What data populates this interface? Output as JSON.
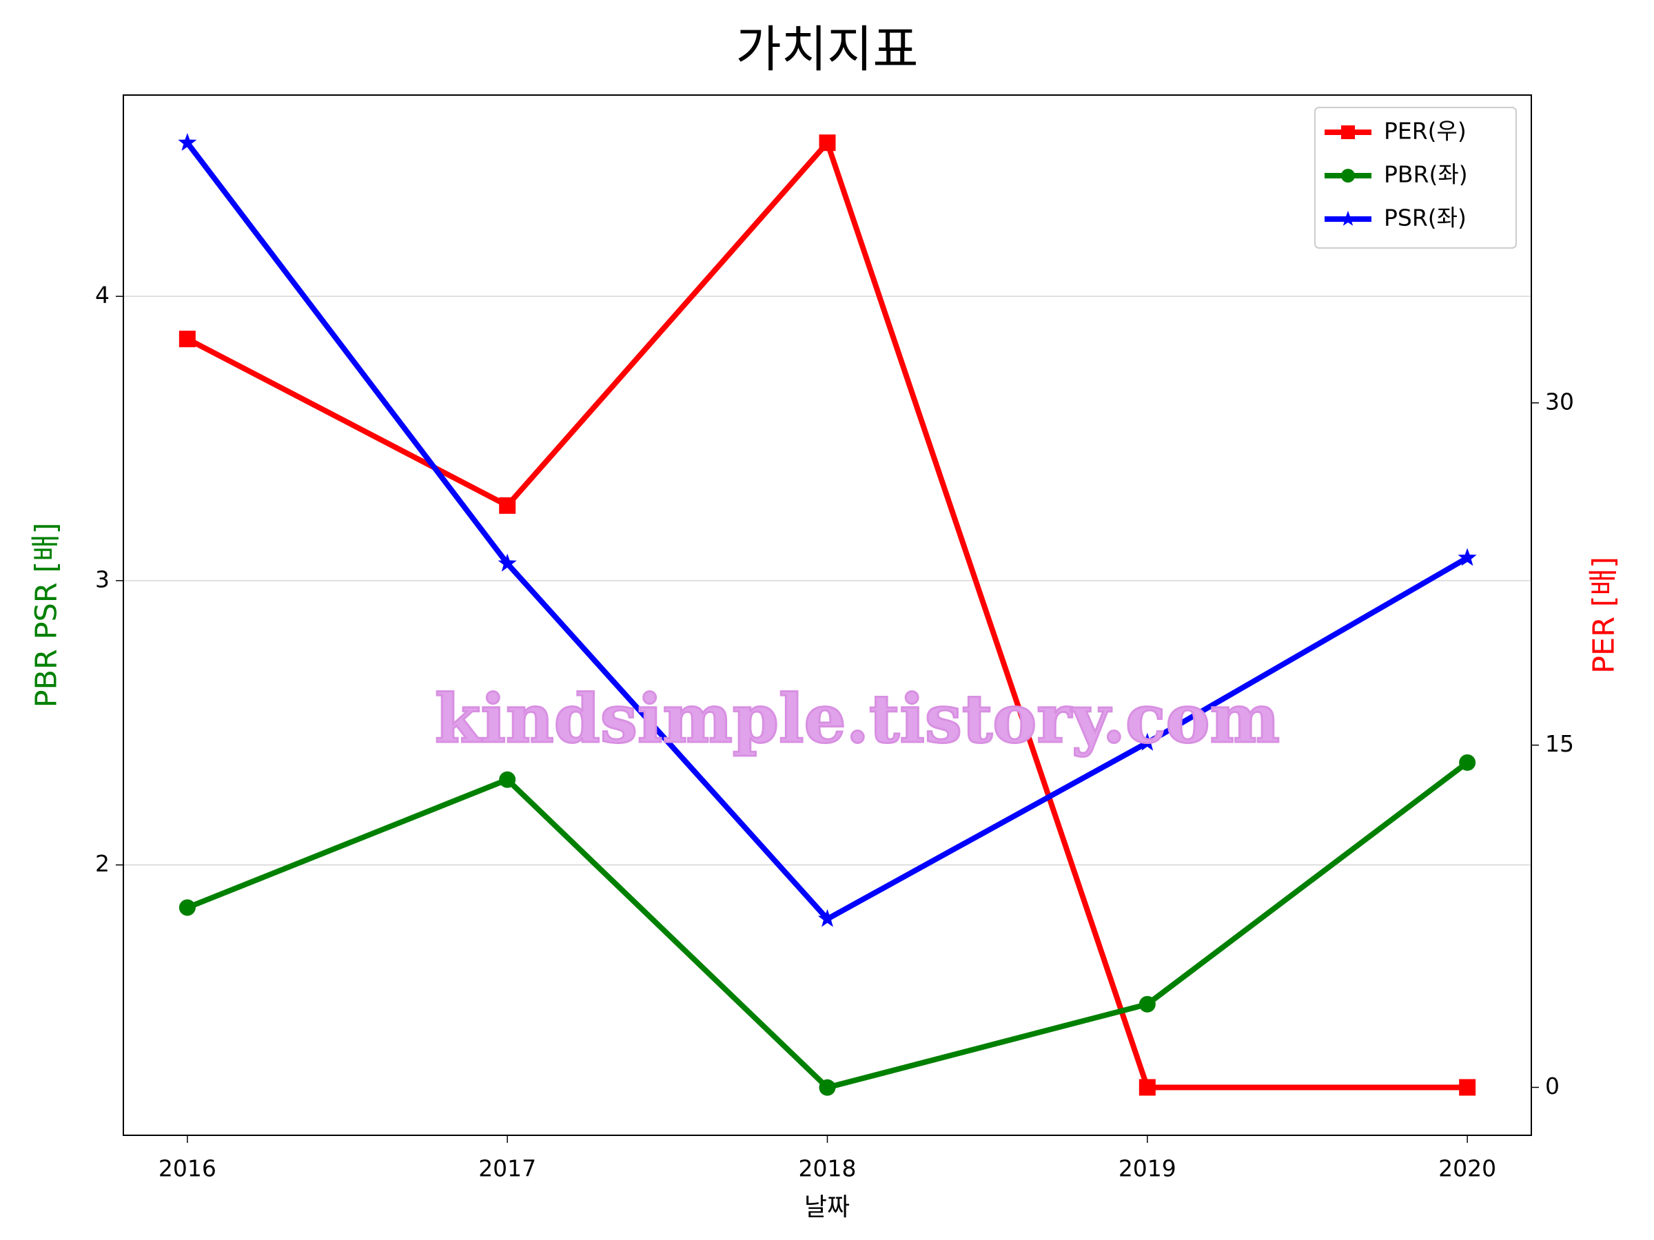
{
  "chart_data": {
    "type": "line",
    "title": "가치지표",
    "xlabel": "날짜",
    "ylabel": "PBR PSR [배]",
    "y2label": "PER [배]",
    "ylabel_color": "green",
    "y2label_color": "red",
    "x": [
      2016,
      2017,
      2018,
      2019,
      2020
    ],
    "xlim": [
      2015.8,
      2020.2
    ],
    "xticks": [
      2016,
      2017,
      2018,
      2019,
      2020
    ],
    "ylim": [
      1.049,
      4.708
    ],
    "yticks": [
      2,
      3,
      4
    ],
    "y2lim": [
      -2.1,
      43.49
    ],
    "y2ticks": [
      0,
      15,
      30
    ],
    "grid": true,
    "legend": "upper right",
    "series": [
      {
        "name": "PER(우)",
        "color": "red",
        "marker": "square",
        "axis": "y2",
        "values": [
          32.8,
          25.5,
          41.4,
          0,
          0
        ]
      },
      {
        "name": "PBR(좌)",
        "color": "green",
        "marker": "circle",
        "values": [
          1.85,
          2.3,
          1.217,
          1.51,
          2.36
        ]
      },
      {
        "name": "PSR(좌)",
        "color": "blue",
        "marker": "star",
        "values": [
          4.54,
          3.06,
          1.81,
          2.43,
          3.08
        ]
      }
    ],
    "watermark": "kindsimple.tistory.com"
  }
}
